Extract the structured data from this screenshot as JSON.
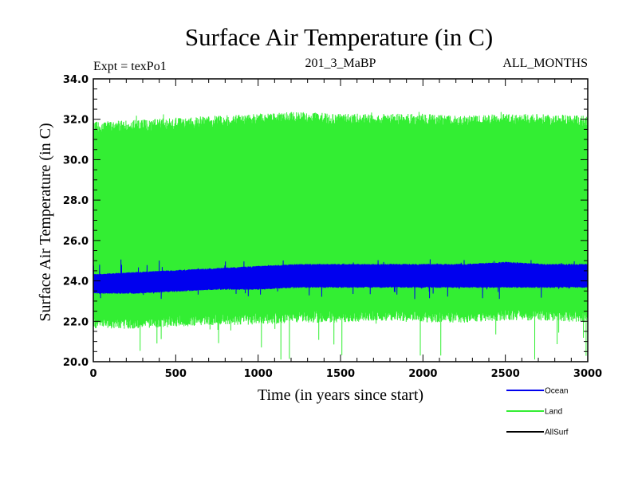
{
  "chart_data": {
    "type": "line",
    "title": "Surface Air Temperature (in C)",
    "subtitle_left": "Expt = texPo1",
    "subtitle_center": "201_3_MaBP",
    "subtitle_right": "ALL_MONTHS",
    "xlabel": "Time (in years since start)",
    "ylabel": "Surface Air Temperature (in C)",
    "xlim": [
      0,
      3000
    ],
    "ylim": [
      20.0,
      34.0
    ],
    "x_ticks": [
      0,
      500,
      1000,
      1500,
      2000,
      2500,
      3000
    ],
    "x_tick_labels": [
      "0",
      "500",
      "1000",
      "1500",
      "2000",
      "2500",
      "3000"
    ],
    "y_ticks": [
      20.0,
      22.0,
      24.0,
      26.0,
      28.0,
      30.0,
      32.0,
      34.0
    ],
    "y_tick_labels": [
      "20.0",
      "22.0",
      "24.0",
      "26.0",
      "28.0",
      "30.0",
      "32.0",
      "34.0"
    ],
    "grid": false,
    "legend_placement": "below-right",
    "series": [
      {
        "name": "Land",
        "color": "#33ee33",
        "x": [
          0,
          250,
          500,
          750,
          1000,
          1250,
          1500,
          1750,
          2000,
          2250,
          2500,
          2750,
          3000
        ],
        "upper": [
          31.5,
          31.6,
          31.7,
          31.8,
          31.9,
          32.0,
          31.9,
          31.9,
          31.9,
          31.8,
          31.9,
          31.9,
          31.8
        ],
        "lower": [
          22.0,
          22.0,
          22.1,
          22.2,
          22.2,
          22.3,
          22.3,
          22.4,
          22.3,
          22.3,
          22.4,
          22.4,
          22.3
        ],
        "max": 32.4,
        "min": 20.1
      },
      {
        "name": "Ocean",
        "color": "#0000ee",
        "x": [
          0,
          250,
          500,
          750,
          1000,
          1250,
          1500,
          1750,
          2000,
          2250,
          2500,
          2750,
          3000
        ],
        "upper": [
          24.3,
          24.4,
          24.5,
          24.6,
          24.7,
          24.8,
          24.8,
          24.8,
          24.8,
          24.8,
          24.9,
          24.8,
          24.8
        ],
        "lower": [
          23.4,
          23.4,
          23.5,
          23.6,
          23.6,
          23.7,
          23.7,
          23.7,
          23.7,
          23.7,
          23.7,
          23.7,
          23.7
        ],
        "max": 25.1,
        "min": 23.1
      },
      {
        "name": "AllSurf",
        "color": "#000000",
        "x": [],
        "upper": [],
        "lower": []
      }
    ]
  }
}
